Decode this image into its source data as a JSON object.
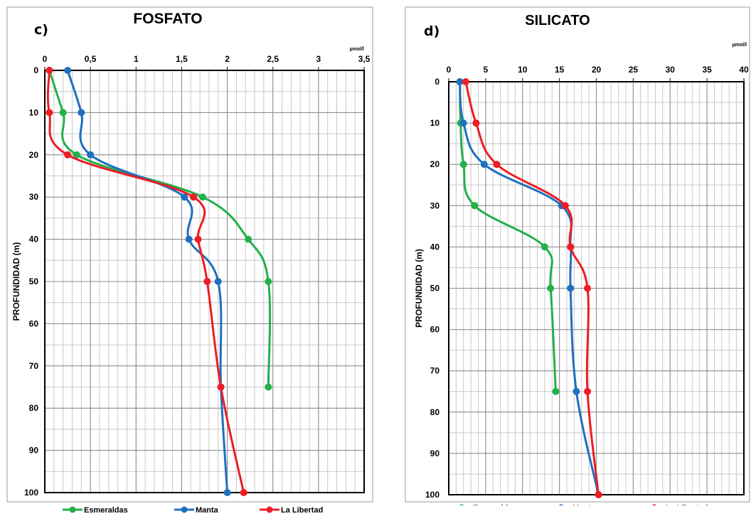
{
  "chart_data": [
    {
      "type": "line",
      "panel_letter": "c)",
      "title": "FOSFATO",
      "unit": "µmol/l",
      "xlabel": "",
      "ylabel": "PROFUNDIDAD (m)",
      "xlim": [
        0,
        3.5
      ],
      "ylim": [
        0,
        100
      ],
      "y_inverted": true,
      "x_ticks": [
        0,
        0.5,
        1,
        1.5,
        2,
        2.5,
        3,
        3.5
      ],
      "x_tick_labels": [
        "0",
        "0,5",
        "1",
        "1,5",
        "2",
        "2,5",
        "3",
        "3,5"
      ],
      "y_ticks": [
        0,
        10,
        20,
        30,
        40,
        50,
        60,
        70,
        80,
        90,
        100
      ],
      "x_minor_step": 0.1,
      "y_minor_step": 5,
      "grid": true,
      "legend_position": "bottom",
      "series": [
        {
          "name": "Esmeraldas",
          "color": "#22b04b",
          "points": [
            [
              0.05,
              0
            ],
            [
              0.2,
              10
            ],
            [
              0.35,
              20
            ],
            [
              1.73,
              30
            ],
            [
              2.23,
              40
            ],
            [
              2.45,
              50
            ],
            [
              2.45,
              75
            ]
          ]
        },
        {
          "name": "Manta",
          "color": "#1f6fbf",
          "points": [
            [
              0.25,
              0
            ],
            [
              0.4,
              10
            ],
            [
              0.5,
              20
            ],
            [
              1.53,
              30
            ],
            [
              1.58,
              40
            ],
            [
              1.9,
              50
            ],
            [
              1.93,
              75
            ],
            [
              2.0,
              100
            ]
          ]
        },
        {
          "name": "La Libertad",
          "color": "#ee1c24",
          "points": [
            [
              0.05,
              0
            ],
            [
              0.05,
              10
            ],
            [
              0.25,
              20
            ],
            [
              1.63,
              30
            ],
            [
              1.68,
              40
            ],
            [
              1.78,
              50
            ],
            [
              1.93,
              75
            ],
            [
              2.18,
              100
            ]
          ]
        }
      ]
    },
    {
      "type": "line",
      "panel_letter": "d)",
      "title": "SILICATO",
      "unit": "µmol/l",
      "xlabel": "",
      "ylabel": "PROFUNDIDAD (m)",
      "xlim": [
        0,
        40
      ],
      "ylim": [
        0,
        100
      ],
      "y_inverted": true,
      "x_ticks": [
        0,
        5,
        10,
        15,
        20,
        25,
        30,
        35,
        40
      ],
      "x_tick_labels": [
        "0",
        "5",
        "10",
        "15",
        "20",
        "25",
        "30",
        "35",
        "40"
      ],
      "y_ticks": [
        0,
        10,
        20,
        30,
        40,
        50,
        60,
        70,
        80,
        90,
        100
      ],
      "x_minor_step": 1,
      "y_minor_step": 5,
      "grid": true,
      "legend_position": "bottom",
      "series": [
        {
          "name": "Esmeraldas",
          "color": "#22b04b",
          "points": [
            [
              1.5,
              0
            ],
            [
              1.6,
              10
            ],
            [
              2.0,
              20
            ],
            [
              3.5,
              30
            ],
            [
              13.0,
              40
            ],
            [
              13.8,
              50
            ],
            [
              14.5,
              75
            ]
          ]
        },
        {
          "name": "Manta",
          "color": "#1f6fbf",
          "points": [
            [
              1.5,
              0
            ],
            [
              2.0,
              10
            ],
            [
              4.8,
              20
            ],
            [
              15.3,
              30
            ],
            [
              16.5,
              40
            ],
            [
              16.5,
              50
            ],
            [
              17.3,
              75
            ],
            [
              20.3,
              100
            ]
          ]
        },
        {
          "name": "La Libertad",
          "color": "#ee1c24",
          "points": [
            [
              2.3,
              0
            ],
            [
              3.7,
              10
            ],
            [
              6.5,
              20
            ],
            [
              15.8,
              30
            ],
            [
              16.5,
              40
            ],
            [
              18.8,
              50
            ],
            [
              18.8,
              75
            ],
            [
              20.3,
              100
            ]
          ]
        }
      ]
    }
  ]
}
